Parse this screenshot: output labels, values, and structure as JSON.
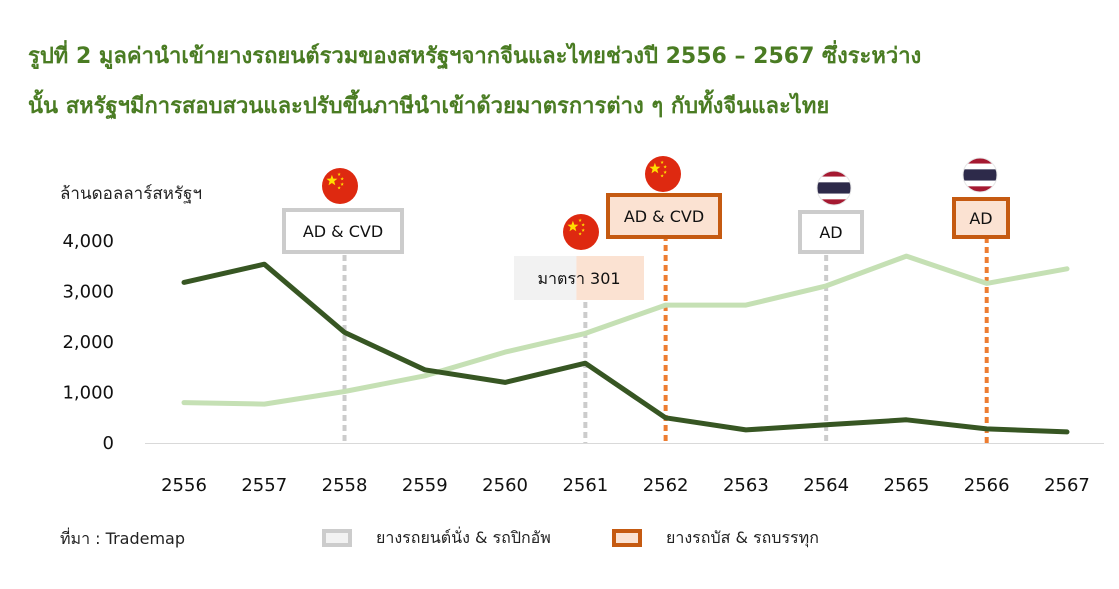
{
  "title_line1": "รูปที่ 2 มูลค่านำเข้ายางรถยนต์รวมของสหรัฐฯจากจีนและไทยช่วงปี 2556 – 2567 ซึ่งระหว่าง",
  "title_line2": "นั้น สหรัฐฯมีการสอบสวนและปรับขึ้นภาษีนำเข้าด้วยมาตรการต่าง ๆ กับทั้งจีนและไทย",
  "source": "ที่มา : Trademap",
  "legend": [
    {
      "label": "ยางรถยนต์นั่ง & รถปิกอัพ",
      "color": "#c5e0b4"
    },
    {
      "label": "ยางรถบัส & รถบรรทุก",
      "color": "#375623"
    }
  ],
  "chart_data": {
    "type": "line",
    "ylabel": "ล้านดอลลาร์สหรัฐฯ",
    "ylim": [
      0,
      4000
    ],
    "yticks": [
      0,
      1000,
      2000,
      3000,
      4000
    ],
    "ytick_labels": [
      "0",
      "1,000",
      "2,000",
      "3,000",
      "4,000"
    ],
    "categories": [
      "2556",
      "2557",
      "2558",
      "2559",
      "2560",
      "2561",
      "2562",
      "2563",
      "2564",
      "2565",
      "2566",
      "2567"
    ],
    "series": [
      {
        "name": "ยางรถยนต์นั่ง & รถปิกอัพ",
        "color": "#c5e0b4",
        "values": [
          800,
          770,
          1020,
          1330,
          1800,
          2170,
          2730,
          2730,
          3110,
          3700,
          3160,
          3450
        ]
      },
      {
        "name": "ยางรถบัส & รถบรรทุก",
        "color": "#375623",
        "values": [
          3180,
          3540,
          2190,
          1450,
          1200,
          1580,
          500,
          260,
          360,
          460,
          280,
          220
        ]
      }
    ],
    "grid": false,
    "annotations": [
      {
        "year": "2558",
        "label": "AD & CVD",
        "flag": "china",
        "kind": "passenger"
      },
      {
        "year": "2561",
        "label": "มาตรา 301",
        "flag": "china",
        "kind": "both"
      },
      {
        "year": "2562",
        "label": "AD & CVD",
        "flag": "china",
        "kind": "truck"
      },
      {
        "year": "2564",
        "label": "AD",
        "flag": "thailand",
        "kind": "passenger"
      },
      {
        "year": "2566",
        "label": "AD",
        "flag": "thailand",
        "kind": "truck"
      }
    ],
    "colors": {
      "passenger_box_border": "#cccccc",
      "passenger_line": "#cccccc",
      "truck_box_border": "#c55a11",
      "truck_box_fill": "#fbe2d2",
      "truck_line": "#ed7d31",
      "china_flag": "#de2910",
      "china_star": "#ffde00",
      "thai_red": "#a51931",
      "thai_blue": "#2d2a4a"
    }
  }
}
